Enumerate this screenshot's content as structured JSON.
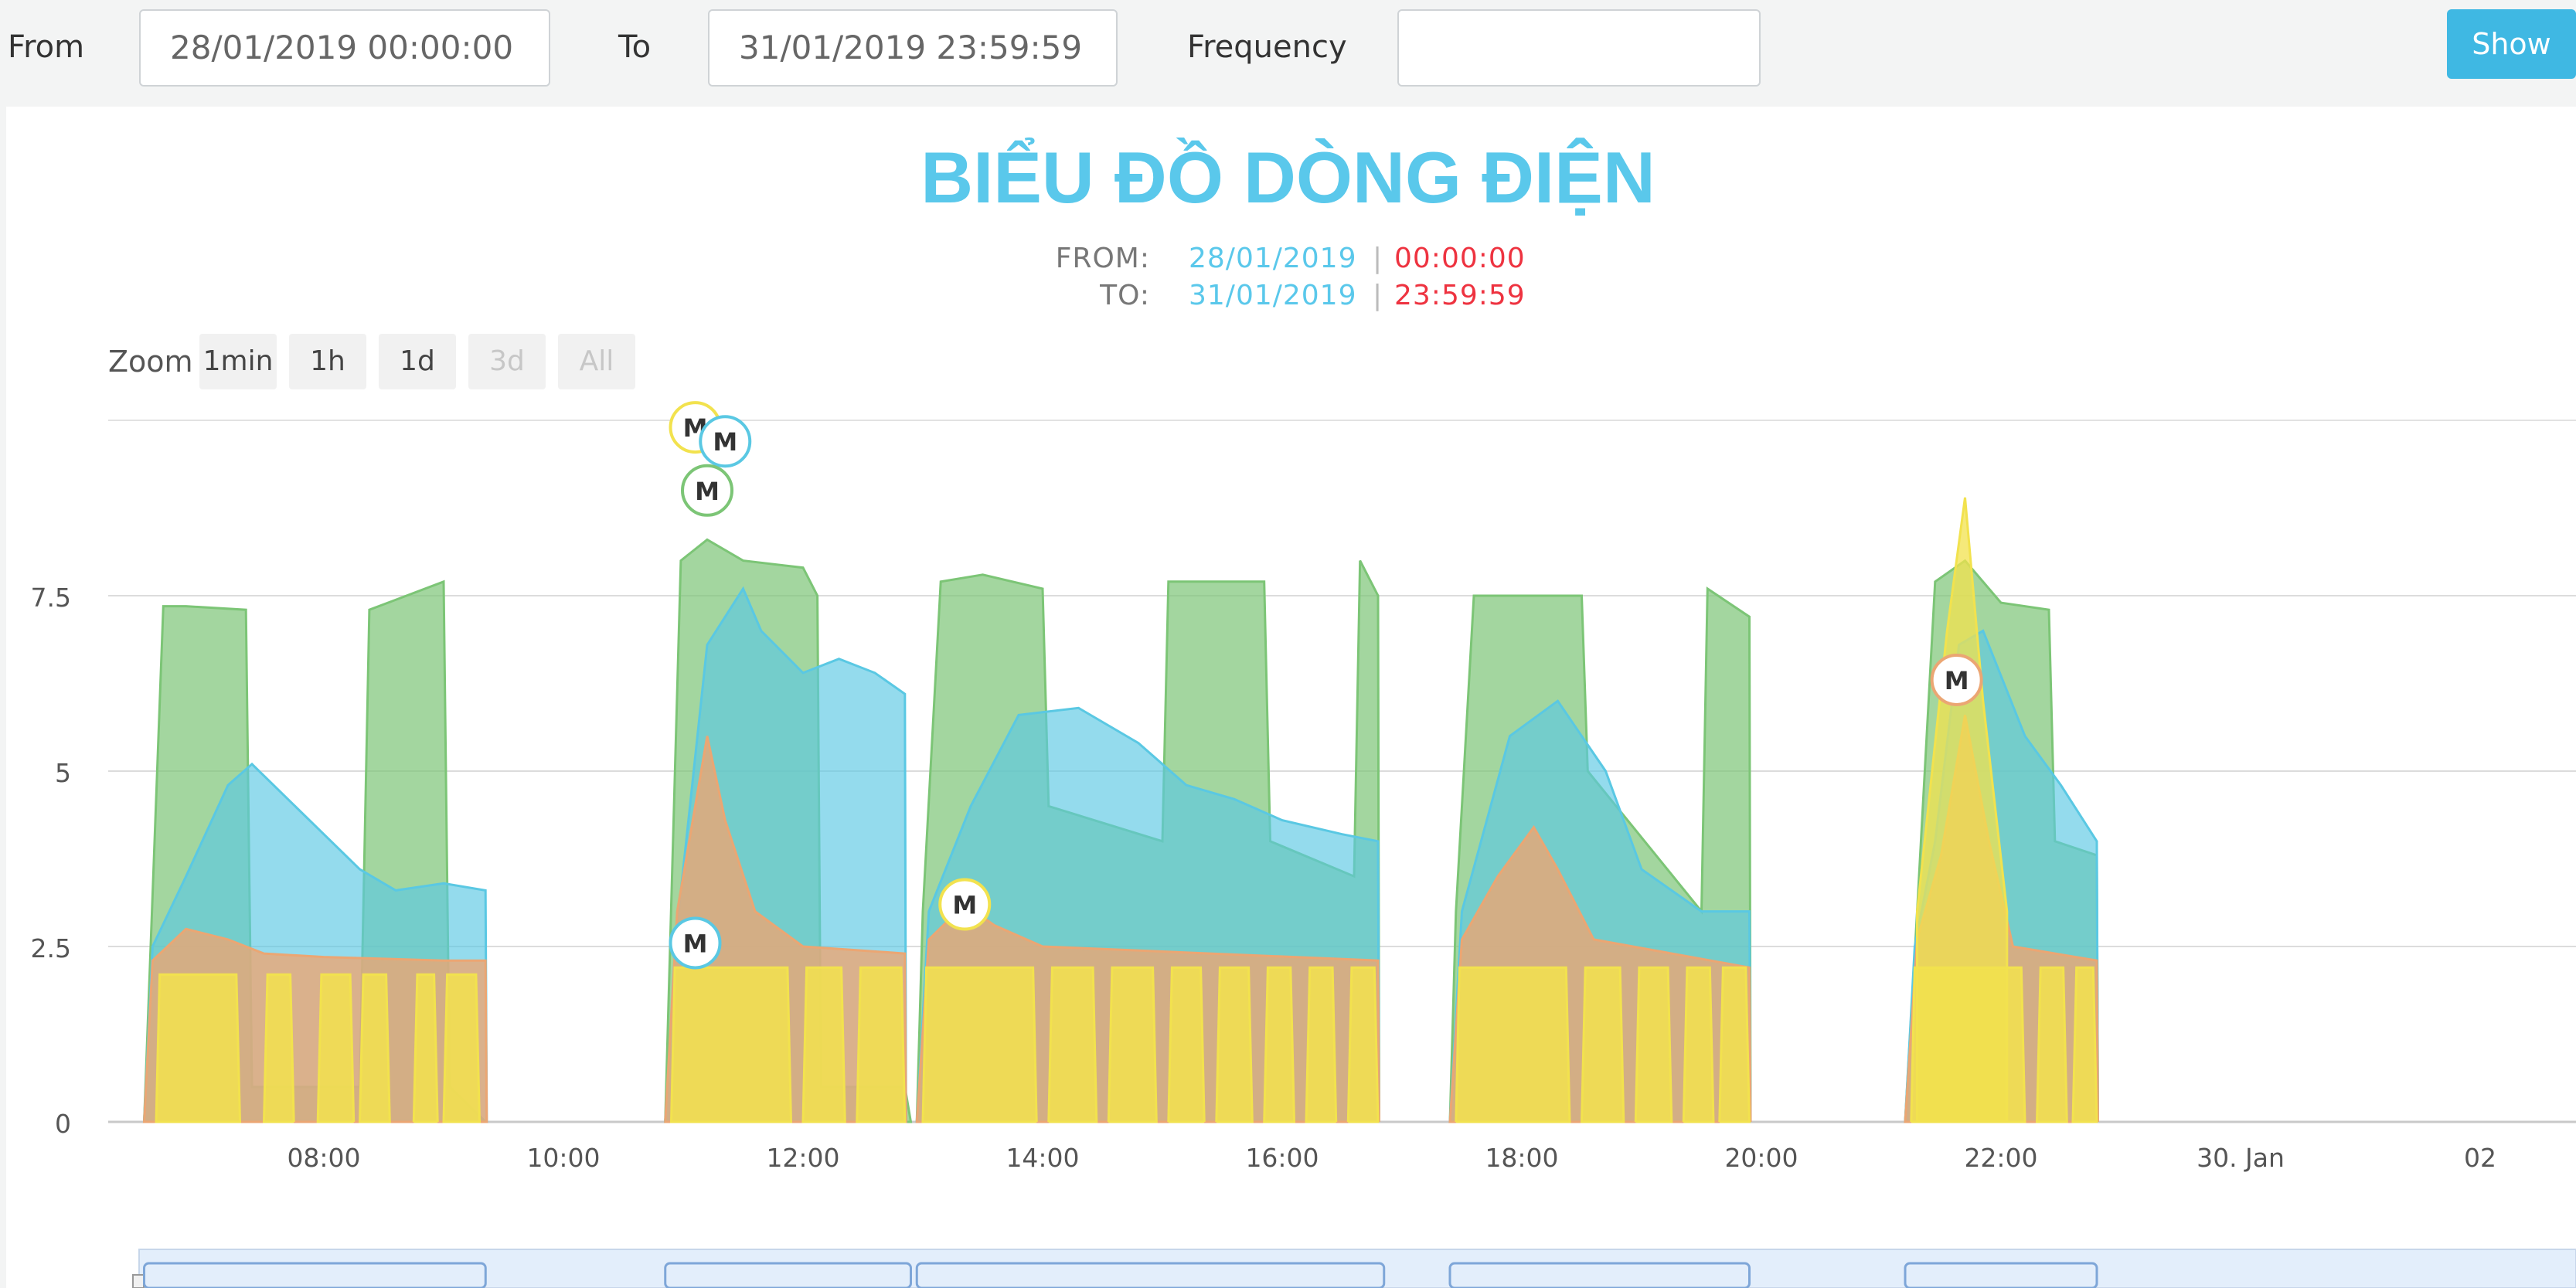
{
  "filter": {
    "from_label": "From",
    "from_value": "28/01/2019 00:00:00",
    "to_label": "To",
    "to_value": "31/01/2019 23:59:59",
    "frequency_label": "Frequency",
    "frequency_value": "",
    "show_label": "Show"
  },
  "colors": {
    "title": "#5ac8eb",
    "date": "#5ac8eb",
    "time": "#ee3340",
    "show_button": "#3fb8e3",
    "series_green": "#7cc576",
    "series_blue": "#5ac8e3",
    "series_orange": "#eba673",
    "series_yellow": "#f2e24e"
  },
  "zoom": {
    "label": "Zoom",
    "buttons": [
      {
        "label": "1min",
        "enabled": true
      },
      {
        "label": "1h",
        "enabled": true
      },
      {
        "label": "1d",
        "enabled": true
      },
      {
        "label": "3d",
        "enabled": false
      },
      {
        "label": "All",
        "enabled": false
      }
    ]
  },
  "chart_data": {
    "type": "area",
    "title": "BIỂU ĐỒ DÒNG ĐIỆN",
    "subtitle": {
      "from_label": "FROM:",
      "from_date": "28/01/2019",
      "from_time": "00:00:00",
      "to_label": "TO:",
      "to_date": "31/01/2019",
      "to_time": "23:59:59",
      "separator": "|"
    },
    "x_ticks": [
      "08:00",
      "10:00",
      "12:00",
      "14:00",
      "16:00",
      "18:00",
      "20:00",
      "22:00",
      "30. Jan",
      "02"
    ],
    "x_tick_hours": [
      8,
      10,
      12,
      14,
      16,
      18,
      20,
      22,
      24,
      26
    ],
    "y_ticks": [
      "0",
      "2.5",
      "5",
      "7.5"
    ],
    "y_tick_values": [
      0,
      2.5,
      5,
      7.5
    ],
    "xlim_hours": [
      6.2,
      26.8
    ],
    "ylim": [
      0,
      10
    ],
    "grid": true,
    "legend": "none",
    "segments": [
      {
        "start": 6.5,
        "end": 9.35,
        "green": [
          [
            6.5,
            0
          ],
          [
            6.66,
            7.35
          ],
          [
            6.85,
            7.35
          ],
          [
            7.35,
            7.3
          ],
          [
            7.4,
            0.5
          ],
          [
            8.3,
            0.5
          ],
          [
            8.38,
            7.3
          ],
          [
            9.0,
            7.7
          ],
          [
            9.05,
            0.5
          ],
          [
            9.35,
            0
          ]
        ],
        "blue": [
          [
            6.5,
            0
          ],
          [
            6.57,
            2.5
          ],
          [
            6.85,
            3.5
          ],
          [
            7.2,
            4.8
          ],
          [
            7.4,
            5.1
          ],
          [
            7.7,
            4.6
          ],
          [
            8.0,
            4.1
          ],
          [
            8.3,
            3.6
          ],
          [
            8.6,
            3.3
          ],
          [
            9.0,
            3.4
          ],
          [
            9.35,
            3.3
          ],
          [
            9.36,
            0
          ]
        ],
        "orange": [
          [
            6.5,
            0
          ],
          [
            6.57,
            2.3
          ],
          [
            6.85,
            2.75
          ],
          [
            7.2,
            2.6
          ],
          [
            7.5,
            2.4
          ],
          [
            8.0,
            2.35
          ],
          [
            9.0,
            2.3
          ],
          [
            9.35,
            2.3
          ],
          [
            9.36,
            0
          ]
        ],
        "yellow_pulses": [
          [
            6.6,
            7.3
          ],
          [
            7.5,
            7.75
          ],
          [
            7.95,
            8.25
          ],
          [
            8.3,
            8.55
          ],
          [
            8.75,
            8.95
          ],
          [
            9.0,
            9.3
          ]
        ],
        "yellow_level": 2.1
      },
      {
        "start": 10.85,
        "end": 12.9,
        "green": [
          [
            10.85,
            0
          ],
          [
            10.98,
            8.0
          ],
          [
            11.2,
            8.3
          ],
          [
            11.5,
            8.0
          ],
          [
            12.0,
            7.9
          ],
          [
            12.12,
            7.5
          ],
          [
            12.15,
            0.5
          ],
          [
            12.85,
            0.5
          ],
          [
            12.9,
            0
          ]
        ],
        "blue": [
          [
            10.85,
            0
          ],
          [
            10.95,
            2.8
          ],
          [
            11.2,
            6.8
          ],
          [
            11.5,
            7.6
          ],
          [
            11.65,
            7.0
          ],
          [
            12.0,
            6.4
          ],
          [
            12.3,
            6.6
          ],
          [
            12.6,
            6.4
          ],
          [
            12.85,
            6.1
          ],
          [
            12.86,
            0
          ]
        ],
        "orange": [
          [
            10.85,
            0
          ],
          [
            10.95,
            3.0
          ],
          [
            11.2,
            5.5
          ],
          [
            11.35,
            4.3
          ],
          [
            11.6,
            3.0
          ],
          [
            12.0,
            2.5
          ],
          [
            12.85,
            2.4
          ],
          [
            12.86,
            0
          ]
        ],
        "yellow_pulses": [
          [
            10.9,
            11.9
          ],
          [
            12.0,
            12.35
          ],
          [
            12.45,
            12.85
          ]
        ],
        "yellow_level": 2.2
      },
      {
        "start": 12.95,
        "end": 16.85,
        "green": [
          [
            12.95,
            0
          ],
          [
            13.0,
            3.0
          ],
          [
            13.15,
            7.7
          ],
          [
            13.5,
            7.8
          ],
          [
            14.0,
            7.6
          ],
          [
            14.05,
            4.5
          ],
          [
            15.0,
            4.0
          ],
          [
            15.05,
            7.7
          ],
          [
            15.85,
            7.7
          ],
          [
            15.9,
            4.0
          ],
          [
            16.6,
            3.5
          ],
          [
            16.65,
            8.0
          ],
          [
            16.8,
            7.5
          ],
          [
            16.81,
            0
          ]
        ],
        "blue": [
          [
            12.95,
            0
          ],
          [
            13.05,
            3.0
          ],
          [
            13.4,
            4.5
          ],
          [
            13.8,
            5.8
          ],
          [
            14.3,
            5.9
          ],
          [
            14.8,
            5.4
          ],
          [
            15.2,
            4.8
          ],
          [
            15.6,
            4.6
          ],
          [
            16.0,
            4.3
          ],
          [
            16.5,
            4.1
          ],
          [
            16.8,
            4.0
          ],
          [
            16.81,
            0
          ]
        ],
        "orange": [
          [
            12.95,
            0
          ],
          [
            13.05,
            2.6
          ],
          [
            13.35,
            3.1
          ],
          [
            13.6,
            2.8
          ],
          [
            14.0,
            2.5
          ],
          [
            16.8,
            2.3
          ],
          [
            16.81,
            0
          ]
        ],
        "yellow_pulses": [
          [
            13.0,
            13.95
          ],
          [
            14.05,
            14.45
          ],
          [
            14.55,
            14.95
          ],
          [
            15.05,
            15.35
          ],
          [
            15.45,
            15.75
          ],
          [
            15.85,
            16.1
          ],
          [
            16.2,
            16.45
          ],
          [
            16.55,
            16.8
          ]
        ],
        "yellow_level": 2.2
      },
      {
        "start": 17.4,
        "end": 19.9,
        "green": [
          [
            17.4,
            0
          ],
          [
            17.45,
            3.0
          ],
          [
            17.6,
            7.5
          ],
          [
            18.5,
            7.5
          ],
          [
            18.55,
            5.0
          ],
          [
            19.5,
            3.0
          ],
          [
            19.55,
            7.6
          ],
          [
            19.9,
            7.2
          ],
          [
            19.91,
            0
          ]
        ],
        "blue": [
          [
            17.4,
            0
          ],
          [
            17.5,
            3.0
          ],
          [
            17.9,
            5.5
          ],
          [
            18.3,
            6.0
          ],
          [
            18.7,
            5.0
          ],
          [
            19.0,
            3.6
          ],
          [
            19.5,
            3.0
          ],
          [
            19.9,
            3.0
          ],
          [
            19.91,
            0
          ]
        ],
        "orange": [
          [
            17.4,
            0
          ],
          [
            17.5,
            2.6
          ],
          [
            17.8,
            3.5
          ],
          [
            18.1,
            4.2
          ],
          [
            18.3,
            3.6
          ],
          [
            18.6,
            2.6
          ],
          [
            19.9,
            2.2
          ],
          [
            19.91,
            0
          ]
        ],
        "yellow_pulses": [
          [
            17.45,
            18.4
          ],
          [
            18.5,
            18.85
          ],
          [
            18.95,
            19.25
          ],
          [
            19.35,
            19.6
          ],
          [
            19.65,
            19.9
          ]
        ],
        "yellow_level": 2.2
      },
      {
        "start": 21.2,
        "end": 22.8,
        "green": [
          [
            21.2,
            0
          ],
          [
            21.3,
            3.0
          ],
          [
            21.45,
            7.7
          ],
          [
            21.7,
            8.0
          ],
          [
            22.0,
            7.4
          ],
          [
            22.4,
            7.3
          ],
          [
            22.45,
            4.0
          ],
          [
            22.8,
            3.8
          ],
          [
            22.81,
            0
          ]
        ],
        "blue": [
          [
            21.2,
            0
          ],
          [
            21.28,
            2.5
          ],
          [
            21.45,
            4.0
          ],
          [
            21.65,
            6.8
          ],
          [
            21.85,
            7.0
          ],
          [
            22.2,
            5.5
          ],
          [
            22.5,
            4.8
          ],
          [
            22.8,
            4.0
          ],
          [
            22.81,
            0
          ]
        ],
        "orange": [
          [
            21.2,
            0
          ],
          [
            21.3,
            2.6
          ],
          [
            21.5,
            3.8
          ],
          [
            21.7,
            5.8
          ],
          [
            21.9,
            4.0
          ],
          [
            22.1,
            2.5
          ],
          [
            22.8,
            2.3
          ],
          [
            22.81,
            0
          ]
        ],
        "yellow_pulses": [
          [
            21.25,
            22.2
          ],
          [
            22.3,
            22.55
          ],
          [
            22.6,
            22.8
          ]
        ],
        "yellow_level": 2.2,
        "yellow_peak": [
          [
            21.3,
            3.0
          ],
          [
            21.55,
            7.0
          ],
          [
            21.7,
            8.9
          ],
          [
            21.85,
            6.0
          ],
          [
            22.05,
            3.0
          ]
        ]
      }
    ],
    "markers": [
      {
        "label": "M",
        "x": 11.1,
        "y": 9.9,
        "ring": "#f2e24e"
      },
      {
        "label": "M",
        "x": 11.35,
        "y": 9.7,
        "ring": "#5ac8e3"
      },
      {
        "label": "M",
        "x": 11.2,
        "y": 9.0,
        "ring": "#7cc576"
      },
      {
        "label": "M",
        "x": 11.1,
        "y": 2.55,
        "ring": "#5ac8e3"
      },
      {
        "label": "M",
        "x": 13.35,
        "y": 3.1,
        "ring": "#f2e24e"
      },
      {
        "label": "M",
        "x": 21.63,
        "y": 6.3,
        "ring": "#eba673"
      }
    ]
  }
}
